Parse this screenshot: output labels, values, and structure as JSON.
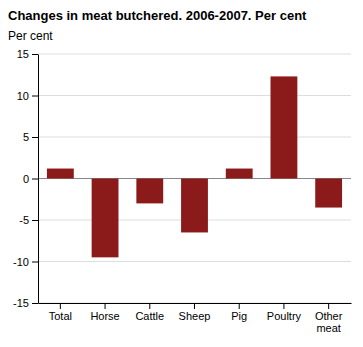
{
  "chart_data": {
    "type": "bar",
    "title": "Changes in meat butchered. 2006-2007. Per cent",
    "ylabel": "Per cent",
    "categories": [
      "Total",
      "Horse",
      "Cattle",
      "Sheep",
      "Pig",
      "Poultry",
      "Other\nmeat"
    ],
    "values": [
      1.2,
      -9.5,
      -3.0,
      -6.5,
      1.2,
      12.3,
      -3.5
    ],
    "color": "#8B1A1A",
    "ylim": [
      -15,
      15
    ],
    "yticks": [
      -15,
      -10,
      -5,
      0,
      5,
      10,
      15
    ],
    "grid": true
  }
}
